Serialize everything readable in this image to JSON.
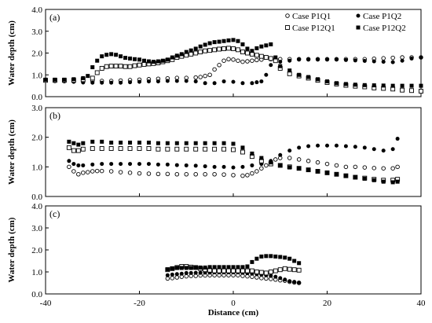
{
  "chart_data": [
    {
      "panel_label": "(a)",
      "type": "scatter",
      "ylabel": "Water depth (cm)",
      "xlim": [
        -40,
        40
      ],
      "ylim": [
        0,
        4
      ],
      "yticks": [
        "0.0",
        "1.0",
        "2.0",
        "3.0",
        "4.0"
      ],
      "series": [
        {
          "name": "Case P1Q1",
          "marker": "open-circle",
          "x": [
            -40,
            -38,
            -36,
            -34,
            -32,
            -30,
            -28,
            -26,
            -24,
            -22,
            -20,
            -18,
            -16,
            -14,
            -12,
            -10,
            -8,
            -7,
            -6,
            -5,
            -4,
            -3,
            -2,
            -1,
            0,
            1,
            2,
            3,
            4,
            5,
            6,
            8,
            10,
            12,
            14,
            16,
            18,
            20,
            22,
            24,
            26,
            28,
            30,
            32,
            34,
            36,
            38,
            40
          ],
          "y": [
            0.75,
            0.72,
            0.72,
            0.7,
            0.7,
            0.72,
            0.72,
            0.72,
            0.74,
            0.76,
            0.78,
            0.8,
            0.82,
            0.84,
            0.86,
            0.86,
            0.88,
            0.9,
            0.95,
            1.0,
            1.25,
            1.45,
            1.65,
            1.72,
            1.7,
            1.65,
            1.6,
            1.62,
            1.65,
            1.68,
            1.7,
            1.72,
            1.72,
            1.72,
            1.72,
            1.72,
            1.72,
            1.72,
            1.72,
            1.72,
            1.72,
            1.72,
            1.74,
            1.76,
            1.78,
            1.8,
            1.8,
            1.8
          ]
        },
        {
          "name": "Case P1Q2",
          "marker": "filled-circle",
          "x": [
            -40,
            -38,
            -36,
            -34,
            -32,
            -30,
            -28,
            -26,
            -24,
            -22,
            -20,
            -18,
            -16,
            -14,
            -12,
            -10,
            -8,
            -6,
            -4,
            -2,
            0,
            2,
            4,
            5,
            6,
            7,
            8,
            10,
            12,
            14,
            16,
            18,
            20,
            22,
            24,
            26,
            28,
            30,
            32,
            34,
            36,
            38,
            40
          ],
          "y": [
            0.75,
            0.72,
            0.7,
            0.68,
            0.65,
            0.64,
            0.64,
            0.64,
            0.64,
            0.66,
            0.68,
            0.7,
            0.7,
            0.72,
            0.72,
            0.72,
            0.7,
            0.62,
            0.62,
            0.7,
            0.68,
            0.62,
            0.62,
            0.66,
            0.7,
            1.0,
            1.45,
            1.6,
            1.65,
            1.7,
            1.7,
            1.7,
            1.7,
            1.7,
            1.68,
            1.66,
            1.64,
            1.62,
            1.6,
            1.58,
            1.65,
            1.75,
            1.8
          ]
        },
        {
          "name": "Case P12Q1",
          "marker": "open-square",
          "x": [
            -40,
            -38,
            -36,
            -34,
            -32,
            -30,
            -29,
            -28,
            -27,
            -26,
            -25,
            -24,
            -23,
            -22,
            -21,
            -20,
            -19,
            -18,
            -17,
            -16,
            -15,
            -14,
            -13,
            -12,
            -11,
            -10,
            -9,
            -8,
            -7,
            -6,
            -5,
            -4,
            -3,
            -2,
            -1,
            0,
            1,
            2,
            3,
            4,
            5,
            6,
            7,
            8,
            9,
            10,
            12,
            14,
            16,
            18,
            20,
            22,
            24,
            26,
            28,
            30,
            32,
            34,
            36,
            38,
            40
          ],
          "y": [
            0.75,
            0.75,
            0.75,
            0.75,
            0.78,
            0.85,
            1.1,
            1.3,
            1.38,
            1.4,
            1.4,
            1.4,
            1.38,
            1.38,
            1.42,
            1.45,
            1.48,
            1.5,
            1.52,
            1.55,
            1.6,
            1.65,
            1.7,
            1.8,
            1.85,
            1.9,
            1.95,
            2.0,
            2.05,
            2.1,
            2.12,
            2.15,
            2.18,
            2.2,
            2.22,
            2.2,
            2.15,
            2.05,
            2.0,
            1.95,
            1.9,
            1.85,
            1.8,
            1.75,
            1.65,
            1.3,
            1.05,
            0.95,
            0.85,
            0.75,
            0.65,
            0.58,
            0.52,
            0.48,
            0.45,
            0.4,
            0.38,
            0.35,
            0.3,
            0.28,
            0.25
          ]
        },
        {
          "name": "Case P12Q2",
          "marker": "filled-square",
          "x": [
            -40,
            -38,
            -36,
            -34,
            -32,
            -31,
            -30,
            -29,
            -28,
            -27,
            -26,
            -25,
            -24,
            -23,
            -22,
            -21,
            -20,
            -19,
            -18,
            -17,
            -16,
            -15,
            -14,
            -13,
            -12,
            -11,
            -10,
            -9,
            -8,
            -7,
            -6,
            -5,
            -4,
            -3,
            -2,
            -1,
            0,
            1,
            2,
            3,
            4,
            5,
            6,
            7,
            8,
            9,
            10,
            12,
            14,
            16,
            18,
            20,
            22,
            24,
            26,
            28,
            30,
            32,
            34,
            36,
            38,
            40
          ],
          "y": [
            0.78,
            0.78,
            0.78,
            0.8,
            0.85,
            0.95,
            1.35,
            1.65,
            1.85,
            1.92,
            1.95,
            1.92,
            1.85,
            1.78,
            1.75,
            1.72,
            1.7,
            1.65,
            1.62,
            1.6,
            1.62,
            1.65,
            1.7,
            1.8,
            1.88,
            1.95,
            2.05,
            2.12,
            2.2,
            2.3,
            2.38,
            2.45,
            2.5,
            2.52,
            2.55,
            2.58,
            2.6,
            2.55,
            2.4,
            2.2,
            2.1,
            2.22,
            2.3,
            2.35,
            2.4,
            1.8,
            1.4,
            1.2,
            1.0,
            0.9,
            0.8,
            0.7,
            0.62,
            0.58,
            0.55,
            0.53,
            0.52,
            0.51,
            0.5,
            0.5,
            0.5,
            0.5
          ]
        }
      ],
      "legend": {
        "placement": "top-right",
        "entries": [
          {
            "label": "Case P1Q1",
            "marker": "open-circle"
          },
          {
            "label": "Case P1Q2",
            "marker": "filled-circle"
          },
          {
            "label": "Case P12Q1",
            "marker": "open-square"
          },
          {
            "label": "Case P12Q2",
            "marker": "filled-square"
          }
        ]
      }
    },
    {
      "panel_label": "(b)",
      "type": "scatter",
      "ylabel": "Water depth (cm)",
      "xlim": [
        -40,
        40
      ],
      "ylim": [
        0,
        3
      ],
      "yticks": [
        "0.0",
        "1.0",
        "2.0",
        "3.0"
      ],
      "series": [
        {
          "name": "Case P1Q1",
          "marker": "open-circle",
          "x": [
            -35,
            -34,
            -33,
            -32,
            -31,
            -30,
            -29,
            -28,
            -26,
            -24,
            -22,
            -20,
            -18,
            -16,
            -14,
            -12,
            -10,
            -8,
            -6,
            -4,
            -2,
            0,
            2,
            3,
            4,
            5,
            6,
            7,
            8,
            9,
            10,
            12,
            14,
            16,
            18,
            20,
            22,
            24,
            26,
            28,
            30,
            32,
            34,
            35
          ],
          "y": [
            1.0,
            0.85,
            0.75,
            0.8,
            0.82,
            0.85,
            0.86,
            0.86,
            0.85,
            0.82,
            0.8,
            0.78,
            0.77,
            0.76,
            0.76,
            0.75,
            0.75,
            0.75,
            0.75,
            0.75,
            0.74,
            0.72,
            0.7,
            0.72,
            0.78,
            0.85,
            0.95,
            1.05,
            1.15,
            1.25,
            1.3,
            1.3,
            1.25,
            1.2,
            1.15,
            1.1,
            1.05,
            1.0,
            1.0,
            0.98,
            0.96,
            0.95,
            0.95,
            1.0
          ]
        },
        {
          "name": "Case P1Q2",
          "marker": "filled-circle",
          "x": [
            -35,
            -34,
            -33,
            -32,
            -30,
            -28,
            -26,
            -24,
            -22,
            -20,
            -18,
            -16,
            -14,
            -12,
            -10,
            -8,
            -6,
            -4,
            -2,
            0,
            2,
            4,
            6,
            8,
            10,
            12,
            14,
            16,
            18,
            20,
            22,
            24,
            26,
            28,
            30,
            32,
            34,
            35
          ],
          "y": [
            1.2,
            1.1,
            1.05,
            1.05,
            1.08,
            1.1,
            1.1,
            1.1,
            1.1,
            1.1,
            1.1,
            1.08,
            1.08,
            1.06,
            1.05,
            1.04,
            1.02,
            1.0,
            1.0,
            0.98,
            1.0,
            1.05,
            1.1,
            1.2,
            1.4,
            1.55,
            1.65,
            1.7,
            1.72,
            1.72,
            1.72,
            1.7,
            1.68,
            1.65,
            1.6,
            1.55,
            1.6,
            1.95
          ]
        },
        {
          "name": "Case P12Q1",
          "marker": "open-square",
          "x": [
            -35,
            -34,
            -33,
            -32,
            -30,
            -28,
            -26,
            -24,
            -22,
            -20,
            -18,
            -16,
            -14,
            -12,
            -10,
            -8,
            -6,
            -4,
            -2,
            0,
            2,
            4,
            6,
            8,
            10,
            12,
            14,
            16,
            18,
            20,
            22,
            24,
            26,
            28,
            30,
            32,
            34,
            35
          ],
          "y": [
            1.65,
            1.55,
            1.55,
            1.6,
            1.62,
            1.62,
            1.62,
            1.62,
            1.62,
            1.62,
            1.62,
            1.6,
            1.6,
            1.6,
            1.6,
            1.6,
            1.6,
            1.6,
            1.6,
            1.58,
            1.5,
            1.35,
            1.2,
            1.1,
            1.05,
            1.0,
            0.95,
            0.9,
            0.85,
            0.8,
            0.75,
            0.7,
            0.65,
            0.62,
            0.58,
            0.55,
            0.55,
            0.58
          ]
        },
        {
          "name": "Case P12Q2",
          "marker": "filled-square",
          "x": [
            -35,
            -34,
            -33,
            -32,
            -30,
            -28,
            -26,
            -24,
            -22,
            -20,
            -18,
            -16,
            -14,
            -12,
            -10,
            -8,
            -6,
            -4,
            -2,
            0,
            2,
            4,
            6,
            8,
            10,
            12,
            14,
            16,
            18,
            20,
            22,
            24,
            26,
            28,
            30,
            32,
            34,
            35
          ],
          "y": [
            1.85,
            1.8,
            1.75,
            1.8,
            1.85,
            1.85,
            1.82,
            1.82,
            1.82,
            1.82,
            1.82,
            1.8,
            1.8,
            1.8,
            1.8,
            1.8,
            1.8,
            1.8,
            1.8,
            1.78,
            1.65,
            1.45,
            1.3,
            1.15,
            1.05,
            0.98,
            0.95,
            0.9,
            0.85,
            0.8,
            0.75,
            0.7,
            0.65,
            0.6,
            0.55,
            0.5,
            0.48,
            0.5
          ]
        }
      ]
    },
    {
      "panel_label": "(c)",
      "type": "scatter",
      "ylabel": "Water depth (cm)",
      "xlabel": "Distance (cm)",
      "xlim": [
        -40,
        40
      ],
      "ylim": [
        0,
        4
      ],
      "yticks": [
        "0.0",
        "1.0",
        "2.0",
        "3.0",
        "4.0"
      ],
      "xticks": [
        "-40",
        "-20",
        "0",
        "20",
        "40"
      ],
      "series": [
        {
          "name": "Case P1Q1",
          "marker": "open-circle",
          "x": [
            -14,
            -13,
            -12,
            -11,
            -10,
            -9,
            -8,
            -7,
            -6,
            -5,
            -4,
            -3,
            -2,
            -1,
            0,
            1,
            2,
            3,
            4,
            5,
            6,
            7,
            8,
            9,
            10,
            11,
            12,
            13,
            14
          ],
          "y": [
            0.7,
            0.72,
            0.75,
            0.78,
            0.8,
            0.82,
            0.82,
            0.84,
            0.84,
            0.85,
            0.85,
            0.85,
            0.85,
            0.85,
            0.85,
            0.85,
            0.82,
            0.8,
            0.78,
            0.75,
            0.72,
            0.7,
            0.68,
            0.65,
            0.62,
            0.6,
            0.55,
            0.52,
            0.5
          ]
        },
        {
          "name": "Case P1Q2",
          "marker": "filled-circle",
          "x": [
            -14,
            -13,
            -12,
            -11,
            -10,
            -9,
            -8,
            -7,
            -6,
            -5,
            -4,
            -3,
            -2,
            -1,
            0,
            1,
            2,
            3,
            4,
            5,
            6,
            7,
            8,
            9,
            10,
            11,
            12,
            13,
            14
          ],
          "y": [
            0.85,
            0.88,
            0.9,
            0.92,
            0.95,
            0.95,
            0.96,
            0.96,
            0.97,
            0.97,
            0.98,
            0.98,
            0.98,
            0.98,
            0.98,
            0.98,
            0.96,
            0.94,
            0.92,
            0.9,
            0.88,
            0.85,
            0.82,
            0.78,
            0.72,
            0.65,
            0.58,
            0.55,
            0.52
          ]
        },
        {
          "name": "Case P12Q1",
          "marker": "open-square",
          "x": [
            -14,
            -13,
            -12,
            -11,
            -10,
            -9,
            -8,
            -7,
            -6,
            -5,
            -4,
            -3,
            -2,
            -1,
            0,
            1,
            2,
            3,
            4,
            5,
            6,
            7,
            8,
            9,
            10,
            11,
            12,
            13,
            14
          ],
          "y": [
            1.1,
            1.15,
            1.2,
            1.25,
            1.25,
            1.22,
            1.2,
            1.15,
            1.1,
            1.08,
            1.05,
            1.05,
            1.05,
            1.05,
            1.05,
            1.05,
            1.05,
            1.05,
            1.05,
            1.0,
            0.98,
            0.95,
            1.0,
            1.05,
            1.1,
            1.15,
            1.12,
            1.1,
            1.08
          ]
        },
        {
          "name": "Case P12Q2",
          "marker": "filled-square",
          "x": [
            -14,
            -13,
            -12,
            -11,
            -10,
            -9,
            -8,
            -7,
            -6,
            -5,
            -4,
            -3,
            -2,
            -1,
            0,
            1,
            2,
            3,
            4,
            5,
            6,
            7,
            8,
            9,
            10,
            11,
            12,
            13,
            14
          ],
          "y": [
            1.12,
            1.15,
            1.18,
            1.18,
            1.18,
            1.18,
            1.2,
            1.2,
            1.2,
            1.22,
            1.22,
            1.22,
            1.22,
            1.22,
            1.22,
            1.22,
            1.22,
            1.25,
            1.45,
            1.6,
            1.7,
            1.72,
            1.72,
            1.7,
            1.68,
            1.65,
            1.6,
            1.5,
            1.4
          ]
        }
      ]
    }
  ]
}
